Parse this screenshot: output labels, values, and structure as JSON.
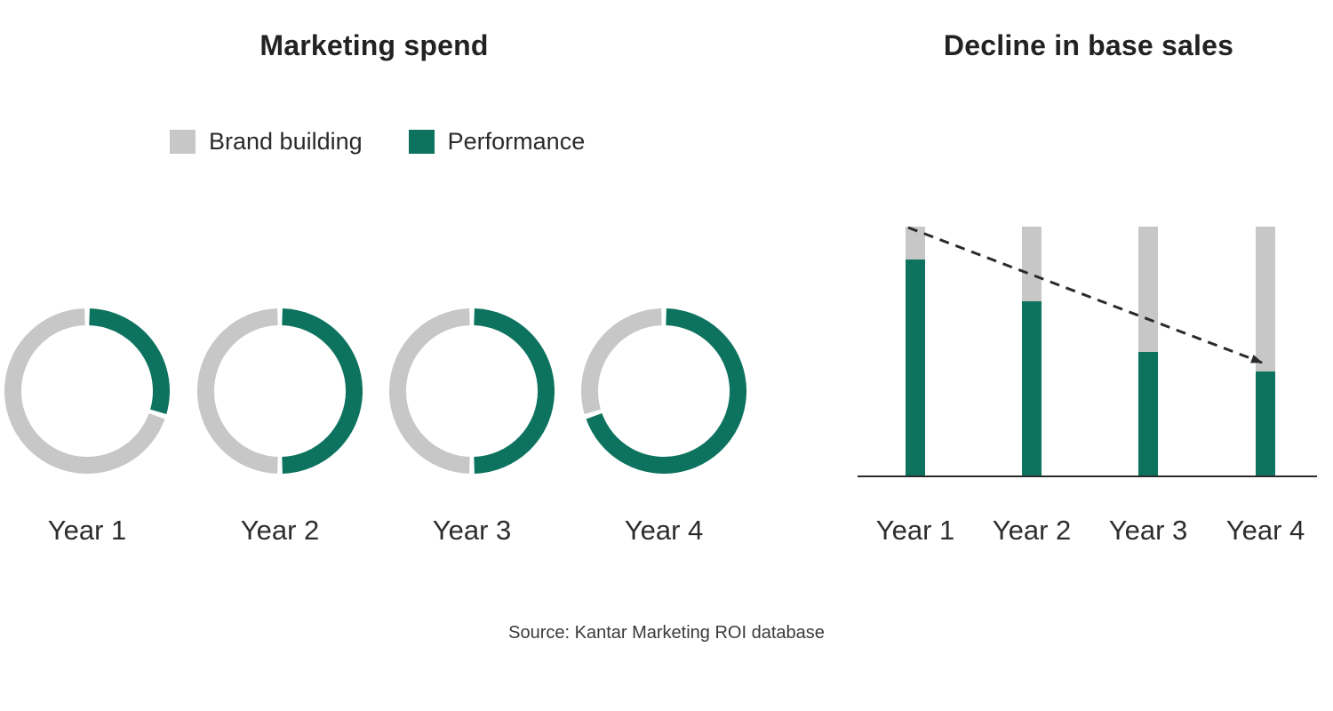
{
  "page": {
    "background": "#ffffff"
  },
  "source_note": "Source: Kantar Marketing ROI database",
  "colors": {
    "brand_building_gray": "#C7C7C7",
    "performance_green": "#0D735F",
    "ink": "#262626",
    "axis_and_arrow": "#2B2B2B"
  },
  "chart_data": [
    {
      "type": "pie",
      "subtype": "donut-row",
      "title": "Marketing spend",
      "categories": [
        "Year 1",
        "Year 2",
        "Year 3",
        "Year 4"
      ],
      "series": [
        {
          "name": "Brand building",
          "color": "#C7C7C7",
          "values": [
            70,
            50,
            50,
            30
          ]
        },
        {
          "name": "Performance",
          "color": "#0D735F",
          "values": [
            30,
            50,
            50,
            70
          ]
        }
      ],
      "legend_position": "top",
      "value_format": "percent of total spend, green arc starts at 12 o'clock clockwise"
    },
    {
      "type": "bar",
      "subtype": "stacked-columns",
      "title": "Decline in base sales",
      "categories": [
        "Year 1",
        "Year 2",
        "Year 3",
        "Year 4"
      ],
      "series": [
        {
          "name": "Base sales",
          "color": "#0D735F",
          "values": [
            87,
            70,
            50,
            42
          ]
        },
        {
          "name": "Decline",
          "color": "#C7C7C7",
          "values": [
            13,
            30,
            50,
            58
          ]
        }
      ],
      "ylim": [
        0,
        100
      ],
      "grid": false,
      "legend_position": "none",
      "annotations": [
        {
          "type": "dashed-arrow",
          "from": "top of Year 1 column",
          "to": "top of Year 4 green segment",
          "color": "#2B2B2B"
        }
      ]
    }
  ]
}
